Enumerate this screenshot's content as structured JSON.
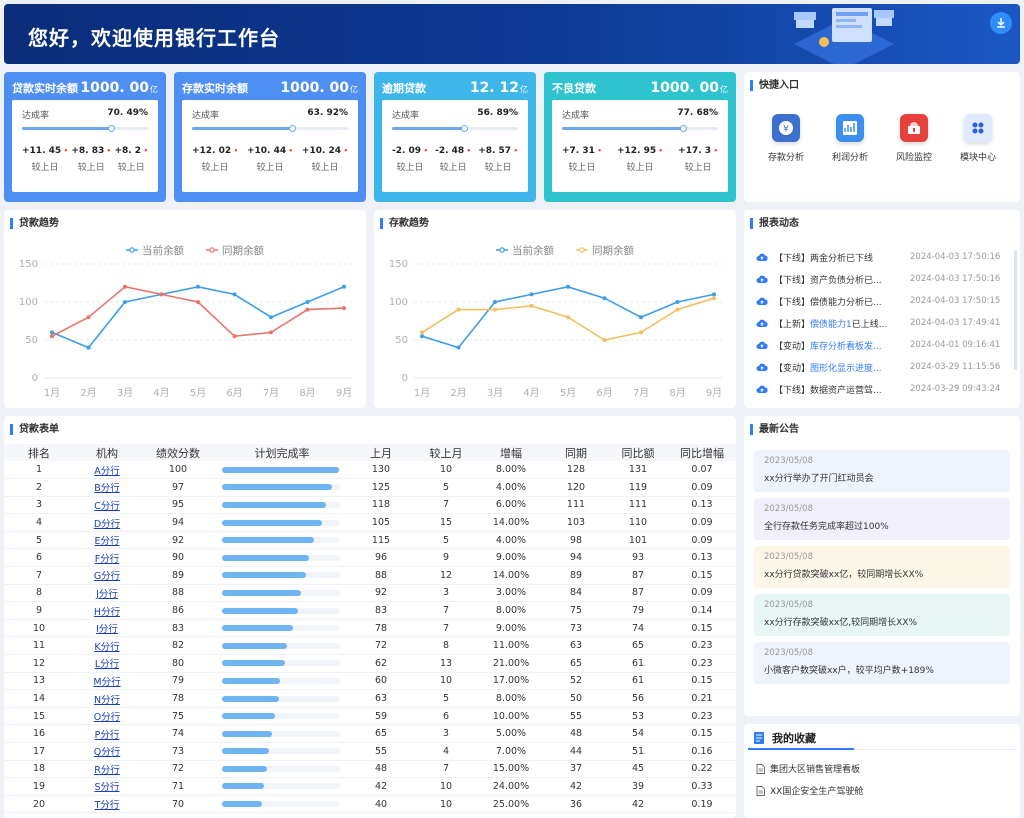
{
  "header": {
    "title": "您好，欢迎使用银行工作台"
  },
  "kpis": [
    {
      "name": "贷款实时余额",
      "value": "1000. 00",
      "unit": "亿",
      "rate_label": "达成率",
      "rate": "70. 49%",
      "rate_frac": 0.7049,
      "deltas": [
        {
          "value": "+11. 45",
          "label": "较上日"
        },
        {
          "value": "+8. 83",
          "label": "较上日"
        },
        {
          "value": "+8. 2",
          "label": "较上日"
        }
      ]
    },
    {
      "name": "存款实时余额",
      "value": "1000. 00",
      "unit": "亿",
      "rate_label": "达成率",
      "rate": "63. 92%",
      "rate_frac": 0.6392,
      "deltas": [
        {
          "value": "+12. 02",
          "label": "较上日"
        },
        {
          "value": "+10. 44",
          "label": "较上日"
        },
        {
          "value": "+10. 24",
          "label": "较上日"
        }
      ]
    },
    {
      "name": "逾期贷款",
      "value": "12. 12",
      "unit": "亿",
      "rate_label": "达成率",
      "rate": "56. 89%",
      "rate_frac": 0.5689,
      "deltas": [
        {
          "value": "-2. 09",
          "label": "较上日"
        },
        {
          "value": "-2. 48",
          "label": "较上日"
        },
        {
          "value": "+8. 57",
          "label": "较上日"
        }
      ]
    },
    {
      "name": "不良贷款",
      "value": "1000. 00",
      "unit": "亿",
      "rate_label": "达成率",
      "rate": "77. 68%",
      "rate_frac": 0.7768,
      "deltas": [
        {
          "value": "+7. 31",
          "label": "较上日"
        },
        {
          "value": "+12. 95",
          "label": "较上日"
        },
        {
          "value": "+17. 3",
          "label": "较上日"
        }
      ]
    }
  ],
  "quick": {
    "title": "快捷入口",
    "items": [
      {
        "label": "存款分析",
        "icon": "deposit-analysis-icon",
        "color": "#3b6fd0"
      },
      {
        "label": "利润分析",
        "icon": "profit-analysis-icon",
        "color": "#3d8ef0"
      },
      {
        "label": "风险监控",
        "icon": "risk-monitor-icon",
        "color": "#e8413d"
      },
      {
        "label": "模块中心",
        "icon": "module-center-icon",
        "color": "#2c5fd8"
      }
    ]
  },
  "loan_chart": {
    "title": "贷款趋势",
    "chart_data": {
      "type": "line",
      "categories": [
        "1月",
        "2月",
        "3月",
        "4月",
        "5月",
        "6月",
        "7月",
        "8月",
        "9月"
      ],
      "yticks": [
        0,
        50,
        100,
        150
      ],
      "ylim": [
        0,
        150
      ],
      "legend_position": "top-center",
      "series": [
        {
          "name": "当前余额",
          "color": "#3c9ee8",
          "values": [
            60,
            40,
            100,
            110,
            120,
            110,
            80,
            100,
            120
          ]
        },
        {
          "name": "同期余额",
          "color": "#e8746a",
          "values": [
            55,
            80,
            120,
            110,
            100,
            55,
            60,
            90,
            92
          ]
        }
      ]
    }
  },
  "deposit_chart": {
    "title": "存款趋势",
    "chart_data": {
      "type": "line",
      "categories": [
        "1月",
        "2月",
        "3月",
        "4月",
        "5月",
        "6月",
        "7月",
        "8月",
        "9月"
      ],
      "yticks": [
        0,
        50,
        100,
        150
      ],
      "ylim": [
        0,
        150
      ],
      "legend_position": "top-center",
      "series": [
        {
          "name": "当前余额",
          "color": "#3c9ee8",
          "values": [
            55,
            40,
            100,
            110,
            120,
            105,
            80,
            100,
            110
          ]
        },
        {
          "name": "同期余额",
          "color": "#f0c060",
          "values": [
            60,
            90,
            90,
            95,
            80,
            50,
            60,
            90,
            105
          ]
        }
      ]
    }
  },
  "report": {
    "title": "报表动态",
    "items": [
      {
        "tag": "【下线】",
        "text": "两金分析已下线",
        "time": "2024-04-03 17:50:16",
        "hl": false
      },
      {
        "tag": "【下线】",
        "text": "资产负债分析已...",
        "time": "2024-04-03 17:50:16",
        "hl": false
      },
      {
        "tag": "【下线】",
        "text": "偿债能力分析已...",
        "time": "2024-04-03 17:50:15",
        "hl": false
      },
      {
        "tag": "【上新】",
        "text": "偿债能力1已上线...",
        "time": "2024-04-03 17:49:41",
        "hl": true,
        "hl_part": "偿债能力1",
        "rest": "已上线..."
      },
      {
        "tag": "【变动】",
        "text": "库存分析看板发...",
        "time": "2024-04-01 09:16:41",
        "hl": true,
        "hl_part": "库存分析看板发...",
        "rest": ""
      },
      {
        "tag": "【变动】",
        "text": "图形化显示进度...",
        "time": "2024-03-29 11:15:56",
        "hl": true,
        "hl_part": "图形化显示进度...",
        "rest": ""
      },
      {
        "tag": "【下线】",
        "text": "数据资产运营驾...",
        "time": "2024-03-29 09:43:24",
        "hl": false
      }
    ]
  },
  "table": {
    "title": "贷款表单",
    "columns": [
      "排名",
      "机构",
      "绩效分数",
      "计划完成率",
      "上月",
      "较上月",
      "增幅",
      "同期",
      "同比额",
      "同比增幅"
    ],
    "rows": [
      {
        "rank": "1",
        "org": "A分行",
        "score": "100",
        "plan": 0.99,
        "last": "130",
        "diff": "10",
        "growth": "8.00%",
        "same": "128",
        "yoy_amt": "131",
        "yoy": "0.07"
      },
      {
        "rank": "2",
        "org": "B分行",
        "score": "97",
        "plan": 0.93,
        "last": "125",
        "diff": "5",
        "growth": "4.00%",
        "same": "120",
        "yoy_amt": "119",
        "yoy": "0.09"
      },
      {
        "rank": "3",
        "org": "C分行",
        "score": "95",
        "plan": 0.88,
        "last": "118",
        "diff": "7",
        "growth": "6.00%",
        "same": "111",
        "yoy_amt": "111",
        "yoy": "0.13"
      },
      {
        "rank": "4",
        "org": "D分行",
        "score": "94",
        "plan": 0.85,
        "last": "105",
        "diff": "15",
        "growth": "14.00%",
        "same": "103",
        "yoy_amt": "110",
        "yoy": "0.09"
      },
      {
        "rank": "5",
        "org": "E分行",
        "score": "92",
        "plan": 0.78,
        "last": "115",
        "diff": "5",
        "growth": "4.00%",
        "same": "98",
        "yoy_amt": "101",
        "yoy": "0.09"
      },
      {
        "rank": "6",
        "org": "F分行",
        "score": "90",
        "plan": 0.74,
        "last": "96",
        "diff": "9",
        "growth": "9.00%",
        "same": "94",
        "yoy_amt": "93",
        "yoy": "0.13"
      },
      {
        "rank": "7",
        "org": "G分行",
        "score": "89",
        "plan": 0.71,
        "last": "88",
        "diff": "12",
        "growth": "14.00%",
        "same": "89",
        "yoy_amt": "87",
        "yoy": "0.15"
      },
      {
        "rank": "8",
        "org": "J分行",
        "score": "88",
        "plan": 0.67,
        "last": "92",
        "diff": "3",
        "growth": "3.00%",
        "same": "84",
        "yoy_amt": "87",
        "yoy": "0.09"
      },
      {
        "rank": "9",
        "org": "H分行",
        "score": "86",
        "plan": 0.64,
        "last": "83",
        "diff": "7",
        "growth": "8.00%",
        "same": "75",
        "yoy_amt": "79",
        "yoy": "0.14"
      },
      {
        "rank": "10",
        "org": "I分行",
        "score": "83",
        "plan": 0.6,
        "last": "78",
        "diff": "7",
        "growth": "9.00%",
        "same": "73",
        "yoy_amt": "74",
        "yoy": "0.15"
      },
      {
        "rank": "11",
        "org": "K分行",
        "score": "82",
        "plan": 0.55,
        "last": "72",
        "diff": "8",
        "growth": "11.00%",
        "same": "63",
        "yoy_amt": "65",
        "yoy": "0.23"
      },
      {
        "rank": "12",
        "org": "L分行",
        "score": "80",
        "plan": 0.53,
        "last": "62",
        "diff": "13",
        "growth": "21.00%",
        "same": "65",
        "yoy_amt": "61",
        "yoy": "0.23"
      },
      {
        "rank": "13",
        "org": "M分行",
        "score": "79",
        "plan": 0.49,
        "last": "60",
        "diff": "10",
        "growth": "17.00%",
        "same": "52",
        "yoy_amt": "61",
        "yoy": "0.15"
      },
      {
        "rank": "14",
        "org": "N分行",
        "score": "78",
        "plan": 0.48,
        "last": "63",
        "diff": "5",
        "growth": "8.00%",
        "same": "50",
        "yoy_amt": "56",
        "yoy": "0.21"
      },
      {
        "rank": "15",
        "org": "O分行",
        "score": "75",
        "plan": 0.45,
        "last": "59",
        "diff": "6",
        "growth": "10.00%",
        "same": "55",
        "yoy_amt": "53",
        "yoy": "0.23"
      },
      {
        "rank": "16",
        "org": "P分行",
        "score": "74",
        "plan": 0.42,
        "last": "65",
        "diff": "3",
        "growth": "5.00%",
        "same": "48",
        "yoy_amt": "54",
        "yoy": "0.15"
      },
      {
        "rank": "17",
        "org": "Q分行",
        "score": "73",
        "plan": 0.4,
        "last": "55",
        "diff": "4",
        "growth": "7.00%",
        "same": "44",
        "yoy_amt": "51",
        "yoy": "0.16"
      },
      {
        "rank": "18",
        "org": "R分行",
        "score": "72",
        "plan": 0.38,
        "last": "48",
        "diff": "7",
        "growth": "15.00%",
        "same": "37",
        "yoy_amt": "45",
        "yoy": "0.22"
      },
      {
        "rank": "19",
        "org": "S分行",
        "score": "71",
        "plan": 0.36,
        "last": "42",
        "diff": "10",
        "growth": "24.00%",
        "same": "42",
        "yoy_amt": "39",
        "yoy": "0.33"
      },
      {
        "rank": "20",
        "org": "T分行",
        "score": "70",
        "plan": 0.34,
        "last": "40",
        "diff": "10",
        "growth": "25.00%",
        "same": "36",
        "yoy_amt": "42",
        "yoy": "0.19"
      }
    ]
  },
  "notice": {
    "title": "最新公告",
    "items": [
      {
        "date": "2023/05/08",
        "text": "xx分行举办了开门红动员会",
        "bg": "#eef3fc"
      },
      {
        "date": "2023/05/08",
        "text": "全行存款任务完成率超过100%",
        "bg": "#f1effb"
      },
      {
        "date": "2023/05/08",
        "text": "xx分行贷款突破xx亿，较同期增长XX%",
        "bg": "#fdf7e8"
      },
      {
        "date": "2023/05/08",
        "text": "xx分行存款突破xx亿,较同期增长XX%",
        "bg": "#e8f7f5"
      },
      {
        "date": "2023/05/08",
        "text": "小微客户数突破xx户，较平均户数+189%",
        "bg": "#eef3fc"
      }
    ]
  },
  "favorites": {
    "title": "我的收藏",
    "items": [
      "集团大区销售管理看板",
      "XX国企安全生产驾驶舱"
    ]
  }
}
